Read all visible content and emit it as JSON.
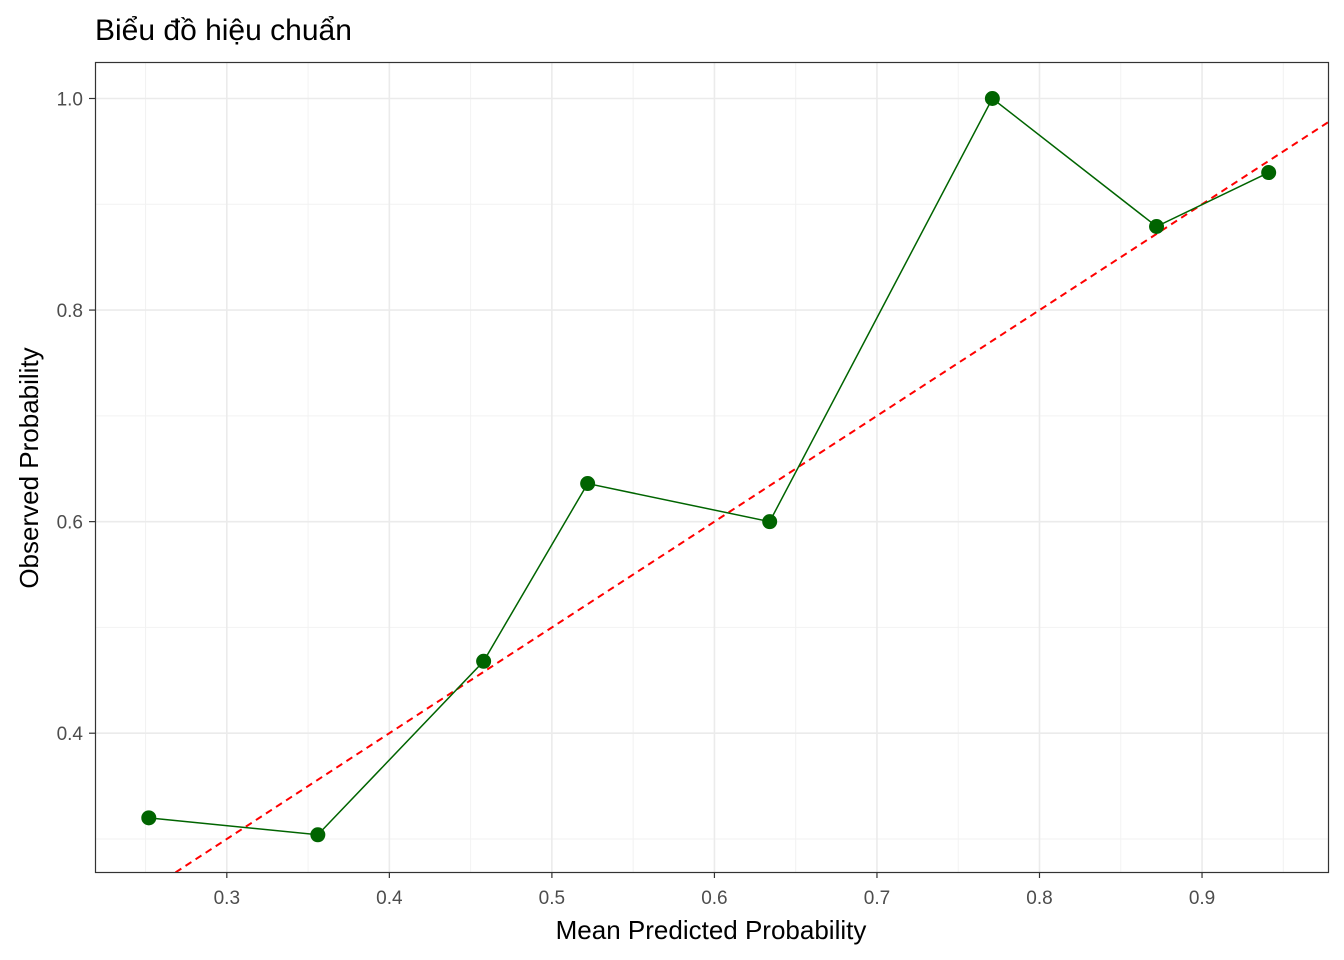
{
  "chart_data": {
    "type": "line",
    "title": "Biểu đồ hiệu chuẩn",
    "xlabel": "Mean Predicted Probability",
    "ylabel": "Observed Probability",
    "xlim": [
      0.2189,
      0.9775
    ],
    "ylim": [
      0.2688,
      1.0345
    ],
    "x_ticks": [
      0.3,
      0.4,
      0.5,
      0.6,
      0.7,
      0.8,
      0.9
    ],
    "x_tick_labels": [
      "0.3",
      "0.4",
      "0.5",
      "0.6",
      "0.7",
      "0.8",
      "0.9"
    ],
    "y_ticks": [
      0.4,
      0.6,
      0.8,
      1.0
    ],
    "y_tick_labels": [
      "0.4",
      "0.6",
      "0.8",
      "1.0"
    ],
    "grid": true,
    "series": [
      {
        "kind": "line+points",
        "color": "#006400",
        "x": [
          0.252,
          0.356,
          0.458,
          0.522,
          0.634,
          0.771,
          0.872,
          0.941
        ],
        "y": [
          0.32,
          0.304,
          0.468,
          0.636,
          0.6,
          1.0,
          0.879,
          0.93
        ]
      },
      {
        "kind": "reference-line",
        "style": "dashed",
        "color": "#ff0000",
        "x": [
          0.2189,
          0.9775
        ],
        "y": [
          0.2189,
          0.9775
        ]
      }
    ]
  }
}
